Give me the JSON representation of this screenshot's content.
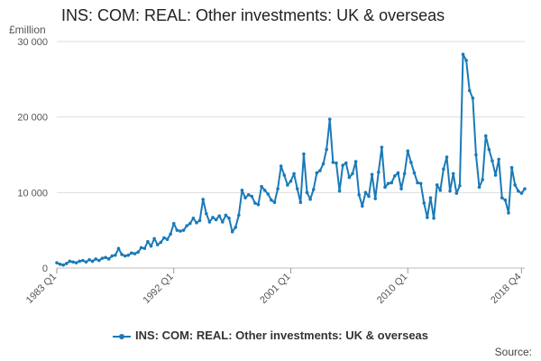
{
  "colors": {
    "series": "#1a7ab8",
    "grid": "#dddddd",
    "axis_text": "#555555",
    "title": "#222222"
  },
  "source_label": "Source:",
  "chart_data": {
    "type": "line",
    "title": "INS: COM: REAL: Other investments: UK & overseas",
    "unit_label": "£million",
    "xlabel": "",
    "ylabel": "",
    "ylim": [
      0,
      30000
    ],
    "y_ticks": [
      {
        "value": 0,
        "label": "0"
      },
      {
        "value": 10000,
        "label": "10 000"
      },
      {
        "value": 20000,
        "label": "20 000"
      },
      {
        "value": 30000,
        "label": "30 000"
      }
    ],
    "x_ticks": [
      "1983 Q1",
      "1992 Q1",
      "2001 Q1",
      "2010 Q1",
      "2018 Q4"
    ],
    "x_start": "1983 Q1",
    "x_end": "2018 Q4",
    "grid": "horizontal",
    "legend_position": "bottom",
    "series": [
      {
        "name": "INS: COM: REAL: Other investments: UK & overseas",
        "values": [
          700,
          500,
          400,
          600,
          900,
          800,
          700,
          900,
          1000,
          800,
          1100,
          900,
          1200,
          1000,
          1300,
          1400,
          1200,
          1600,
          1700,
          2600,
          1800,
          1600,
          1700,
          2000,
          1900,
          2100,
          2700,
          2600,
          3500,
          2900,
          3900,
          3100,
          3400,
          4000,
          3800,
          4500,
          5900,
          5000,
          4900,
          5000,
          5600,
          5900,
          6600,
          6000,
          6300,
          9100,
          7200,
          6100,
          6700,
          6400,
          6900,
          6100,
          7000,
          6600,
          4800,
          5400,
          7000,
          10300,
          9300,
          9700,
          9500,
          8600,
          8400,
          10800,
          10300,
          9800,
          9000,
          8700,
          10500,
          13500,
          12300,
          11000,
          11500,
          12500,
          10500,
          8700,
          15100,
          10000,
          9100,
          10400,
          12600,
          12900,
          13800,
          15700,
          19700,
          14000,
          13900,
          10200,
          13600,
          13900,
          12000,
          12500,
          14100,
          9700,
          8200,
          10000,
          9500,
          12400,
          9200,
          12700,
          16000,
          10700,
          11200,
          11300,
          12200,
          12600,
          10500,
          12500,
          15500,
          14000,
          12600,
          11300,
          11200,
          8600,
          6700,
          9300,
          6600,
          11000,
          10300,
          13100,
          14700,
          10200,
          12500,
          9900,
          10900,
          28300,
          27500,
          23500,
          22500,
          15000,
          10700,
          11700,
          17500,
          15700,
          14200,
          12300,
          14400,
          9300,
          9000,
          7300,
          13300,
          11000,
          10200,
          9900,
          10500
        ]
      }
    ]
  }
}
